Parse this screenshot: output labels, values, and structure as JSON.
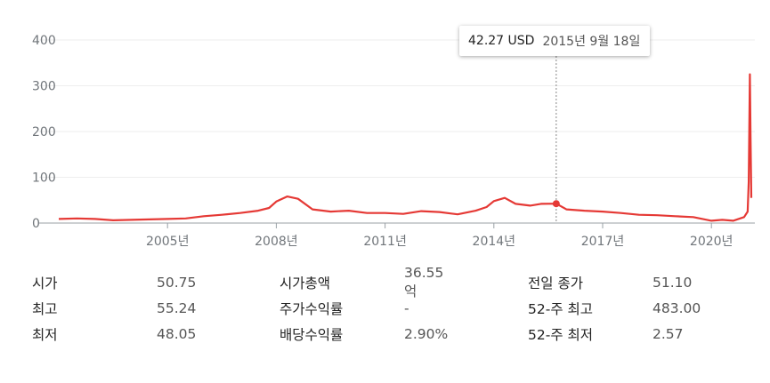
{
  "tooltip": {
    "value": "42.27 USD",
    "date": "2015년 9월 18일"
  },
  "chart_data": {
    "type": "line",
    "ylim": [
      0,
      400
    ],
    "yticks": [
      "0",
      "100",
      "200",
      "300",
      "400"
    ],
    "xticks": [
      "2005년",
      "2008년",
      "2011년",
      "2014년",
      "2017년",
      "2020년"
    ],
    "xtick_years": [
      2005,
      2008,
      2011,
      2014,
      2017,
      2020
    ],
    "xlim": [
      2002.0,
      2021.1
    ],
    "grid": true,
    "line_color": "#e53935",
    "hover_x": 2015.72,
    "x": [
      2002.0,
      2002.5,
      2003.0,
      2003.5,
      2004.0,
      2004.5,
      2005.0,
      2005.5,
      2006.0,
      2006.5,
      2007.0,
      2007.5,
      2007.8,
      2008.0,
      2008.3,
      2008.6,
      2009.0,
      2009.5,
      2010.0,
      2010.5,
      2011.0,
      2011.5,
      2012.0,
      2012.5,
      2013.0,
      2013.5,
      2013.8,
      2014.0,
      2014.3,
      2014.6,
      2015.0,
      2015.3,
      2015.72,
      2016.0,
      2016.5,
      2017.0,
      2017.5,
      2018.0,
      2018.5,
      2019.0,
      2019.5,
      2020.0,
      2020.3,
      2020.6,
      2020.9,
      2021.0,
      2021.03,
      2021.06,
      2021.08,
      2021.1
    ],
    "y": [
      9,
      10,
      9,
      6,
      7,
      8,
      9,
      10,
      15,
      18,
      22,
      27,
      33,
      47,
      58,
      53,
      30,
      25,
      27,
      22,
      22,
      20,
      26,
      24,
      19,
      27,
      35,
      48,
      55,
      42,
      38,
      42,
      42.27,
      30,
      27,
      25,
      22,
      18,
      17,
      15,
      13,
      5,
      7,
      5,
      13,
      25,
      90,
      325,
      180,
      55
    ]
  },
  "stats": {
    "col1": [
      {
        "label": "시가",
        "value": "50.75"
      },
      {
        "label": "최고",
        "value": "55.24"
      },
      {
        "label": "최저",
        "value": "48.05"
      }
    ],
    "col2": [
      {
        "label": "시가총액",
        "value": "36.55억"
      },
      {
        "label": "주가수익률",
        "value": "-"
      },
      {
        "label": "배당수익률",
        "value": "2.90%"
      }
    ],
    "col3": [
      {
        "label": "전일 종가",
        "value": "51.10"
      },
      {
        "label": "52-주 최고",
        "value": "483.00"
      },
      {
        "label": "52-주 최저",
        "value": "2.57"
      }
    ]
  }
}
